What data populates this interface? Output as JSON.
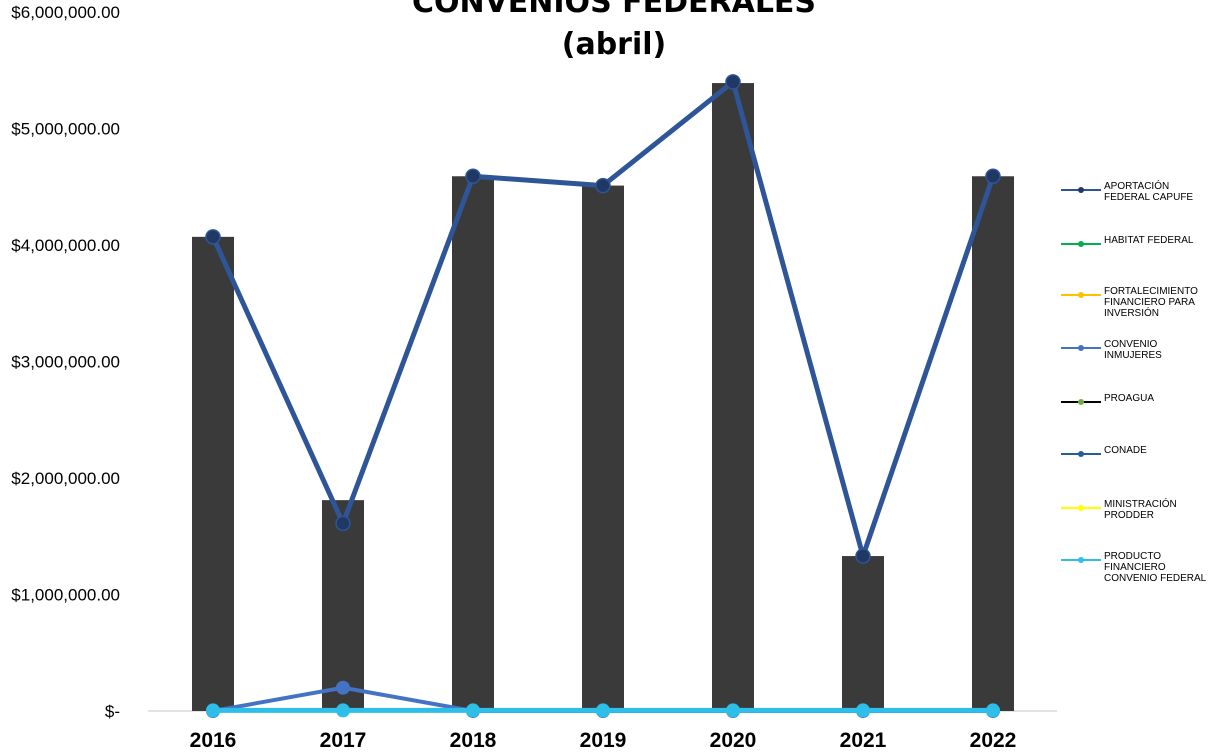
{
  "chart_data": {
    "type": "bar",
    "title_lines": [
      "CONVENIOS FEDERALES",
      "(abril)"
    ],
    "xlabel": "",
    "ylabel": "",
    "categories": [
      "2016",
      "2017",
      "2018",
      "2019",
      "2020",
      "2021",
      "2022"
    ],
    "ylim": [
      0,
      6000000
    ],
    "y_ticks": [
      {
        "value": 0,
        "label": "$-"
      },
      {
        "value": 1000000,
        "label": "$1,000,000.00"
      },
      {
        "value": 2000000,
        "label": "$2,000,000.00"
      },
      {
        "value": 3000000,
        "label": "$3,000,000.00"
      },
      {
        "value": 4000000,
        "label": "$4,000,000.00"
      },
      {
        "value": 5000000,
        "label": "$5,000,000.00"
      },
      {
        "value": 6000000,
        "label": "$6,000,000.00"
      }
    ],
    "grid": false,
    "legend_position": "right",
    "bar_series": {
      "color": "#3a3a3a",
      "values": [
        4070000,
        1810000,
        4590000,
        4510000,
        5390000,
        1330000,
        4590000
      ]
    },
    "line_series": [
      {
        "name": "APORTACIÓN FEDERAL CAPUFE",
        "label_lines": [
          "APORTACIÓN",
          "FEDERAL CAPUFE"
        ],
        "color": "#2e5597",
        "marker_color": "#1f3864",
        "width": 5,
        "values": [
          4070000,
          1610000,
          4590000,
          4510000,
          5400000,
          1330000,
          4590000
        ]
      },
      {
        "name": "HABITAT FEDERAL",
        "label_lines": [
          "HABITAT FEDERAL"
        ],
        "color": "#00b050",
        "marker_color": "#00b050",
        "width": 2,
        "values": [
          0,
          0,
          0,
          0,
          0,
          0,
          0
        ]
      },
      {
        "name": "FORTALECIMIENTO FINANCIERO PARA INVERSIÓN",
        "label_lines": [
          "FORTALECIMIENTO",
          "FINANCIERO PARA",
          "INVERSIÓN"
        ],
        "color": "#ffc000",
        "marker_color": "#ffc000",
        "width": 2,
        "values": [
          0,
          0,
          0,
          0,
          0,
          0,
          0
        ]
      },
      {
        "name": "CONVENIO INMUJERES",
        "label_lines": [
          "CONVENIO",
          "INMUJERES"
        ],
        "color": "#4472c4",
        "marker_color": "#4472c4",
        "width": 4,
        "values": [
          0,
          200000,
          0,
          0,
          0,
          0,
          0
        ]
      },
      {
        "name": "PROAGUA",
        "label_lines": [
          "PROAGUA"
        ],
        "color": "#000000",
        "marker_color": "#70ad47",
        "width": 2,
        "values": [
          0,
          0,
          0,
          0,
          0,
          0,
          0
        ]
      },
      {
        "name": "CONADE",
        "label_lines": [
          "CONADE"
        ],
        "color": "#255e91",
        "marker_color": "#255e91",
        "width": 2,
        "values": [
          0,
          0,
          0,
          0,
          0,
          0,
          0
        ]
      },
      {
        "name": "MINISTRACIÓN PRODDER",
        "label_lines": [
          "MINISTRACIÓN",
          "PRODDER"
        ],
        "color": "#ffff00",
        "marker_color": "#ffff00",
        "width": 2,
        "values": [
          0,
          0,
          0,
          0,
          0,
          0,
          0
        ]
      },
      {
        "name": "PRODUCTO FINANCIERO CONVENIO FEDERAL",
        "label_lines": [
          "PRODUCTO",
          "FINANCIERO",
          "CONVENIO FEDERAL"
        ],
        "color": "#2ebeea",
        "marker_color": "#2ebeea",
        "width": 5,
        "values": [
          5000,
          5000,
          5000,
          5000,
          5000,
          5000,
          5000
        ]
      }
    ]
  }
}
